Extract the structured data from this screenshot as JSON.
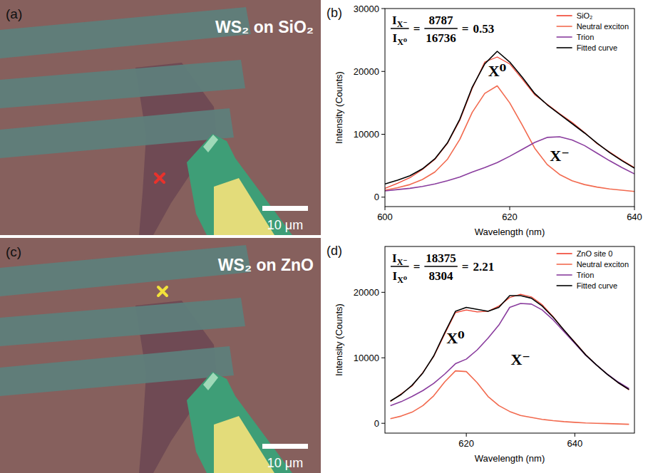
{
  "images": [
    {
      "label": "(a)",
      "title": "WS₂ on SiO₂",
      "scale_bar": "10 μm",
      "marker_color": "#e8322c"
    },
    {
      "label": "(c)",
      "title": "WS₂ on ZnO",
      "scale_bar": "10 μm",
      "marker_color": "#f2e23a"
    }
  ],
  "chart_data": [
    {
      "type": "line",
      "label": "(b)",
      "x_label": "Wavelength (nm)",
      "y_label": "Intensity (Counts)",
      "x": [
        600,
        602,
        604,
        606,
        608,
        610,
        612,
        614,
        616,
        618,
        620,
        622,
        624,
        626,
        628,
        630,
        632,
        634,
        636,
        638,
        640
      ],
      "series": [
        {
          "name": "SiO₂",
          "color": "#f0402e",
          "values": [
            1400,
            2200,
            3100,
            4400,
            6000,
            8500,
            12200,
            17300,
            21500,
            22300,
            21200,
            18800,
            16300,
            14800,
            13300,
            11900,
            10300,
            8500,
            7200,
            5900,
            4700
          ]
        },
        {
          "name": "Neutral exciton",
          "color": "#f26a4f",
          "values": [
            1100,
            1500,
            2000,
            2800,
            4000,
            6000,
            9200,
            13500,
            16500,
            17700,
            15000,
            11500,
            7800,
            5200,
            3600,
            2600,
            2000,
            1600,
            1300,
            1100,
            900
          ]
        },
        {
          "name": "Trion",
          "color": "#8a3d9e",
          "values": [
            1000,
            1200,
            1400,
            1700,
            2100,
            2600,
            3200,
            4000,
            4700,
            5500,
            6500,
            7600,
            8700,
            9500,
            9600,
            9100,
            8200,
            7000,
            5800,
            4700,
            3700
          ]
        },
        {
          "name": "Fitted curve",
          "color": "#000000",
          "values": [
            2100,
            2700,
            3400,
            4500,
            6100,
            8600,
            12400,
            17500,
            21200,
            23200,
            21500,
            19100,
            16500,
            14700,
            13200,
            11700,
            10200,
            8600,
            7100,
            5800,
            4600
          ]
        }
      ],
      "xlim": [
        600,
        640
      ],
      "ylim": [
        -1500,
        30000
      ],
      "xticks": [
        600,
        620,
        640
      ],
      "yticks": [
        0,
        10000,
        20000,
        30000
      ],
      "grid": false,
      "legend": "top-right",
      "annotation": {
        "symbol": "I",
        "numerator_sub": "X⁻",
        "denominator_sub": "X⁰",
        "equals": "=",
        "numerator_value": 8787,
        "denominator_value": 16736,
        "ratio": 0.53
      },
      "peak_labels": [
        {
          "text": "X⁰",
          "series": 1
        },
        {
          "text": "X⁻",
          "series": 2
        }
      ]
    },
    {
      "type": "line",
      "label": "(d)",
      "x_label": "Wavelength (nm)",
      "y_label": "Intensity (Counts)",
      "x": [
        606,
        608,
        610,
        612,
        614,
        616,
        618,
        620,
        622,
        624,
        626,
        628,
        630,
        632,
        634,
        636,
        638,
        640,
        642,
        644,
        646,
        648,
        650
      ],
      "series": [
        {
          "name": "ZnO site 0",
          "color": "#f0402e",
          "values": [
            3300,
            4500,
            5700,
            7800,
            10200,
            13600,
            16900,
            17300,
            17000,
            17100,
            17900,
            19200,
            19700,
            19300,
            18100,
            16300,
            14200,
            12400,
            10500,
            8900,
            7500,
            6200,
            5100
          ]
        },
        {
          "name": "Neutral exciton",
          "color": "#f26a4f",
          "values": [
            700,
            1100,
            1700,
            2700,
            4200,
            6300,
            8000,
            7900,
            6200,
            4100,
            2700,
            1800,
            1200,
            900,
            600,
            400,
            250,
            150,
            50,
            0,
            -50,
            -100,
            -150
          ]
        },
        {
          "name": "Trion",
          "color": "#8a3d9e",
          "values": [
            2700,
            3300,
            4100,
            5000,
            6100,
            7500,
            9100,
            9800,
            11200,
            13000,
            15000,
            17700,
            18300,
            18200,
            17300,
            15800,
            14000,
            12200,
            10400,
            8900,
            7500,
            6300,
            5300
          ]
        },
        {
          "name": "Fitted curve",
          "color": "#000000",
          "values": [
            3400,
            4400,
            5800,
            7700,
            10300,
            13800,
            17100,
            17700,
            17400,
            17100,
            17700,
            19500,
            19500,
            19100,
            17900,
            16200,
            14250,
            12350,
            10450,
            8900,
            7450,
            6200,
            5150
          ]
        }
      ],
      "xlim": [
        605,
        651
      ],
      "ylim": [
        -1500,
        27000
      ],
      "xticks": [
        620,
        640
      ],
      "yticks": [
        0,
        10000,
        20000
      ],
      "grid": false,
      "legend": "top-right",
      "annotation": {
        "symbol": "I",
        "numerator_sub": "X⁻",
        "denominator_sub": "X⁰",
        "equals": "=",
        "numerator_value": 18375,
        "denominator_value": 8304,
        "ratio": 2.21
      },
      "peak_labels": [
        {
          "text": "X⁰",
          "series": 1
        },
        {
          "text": "X⁻",
          "series": 2
        }
      ]
    }
  ]
}
